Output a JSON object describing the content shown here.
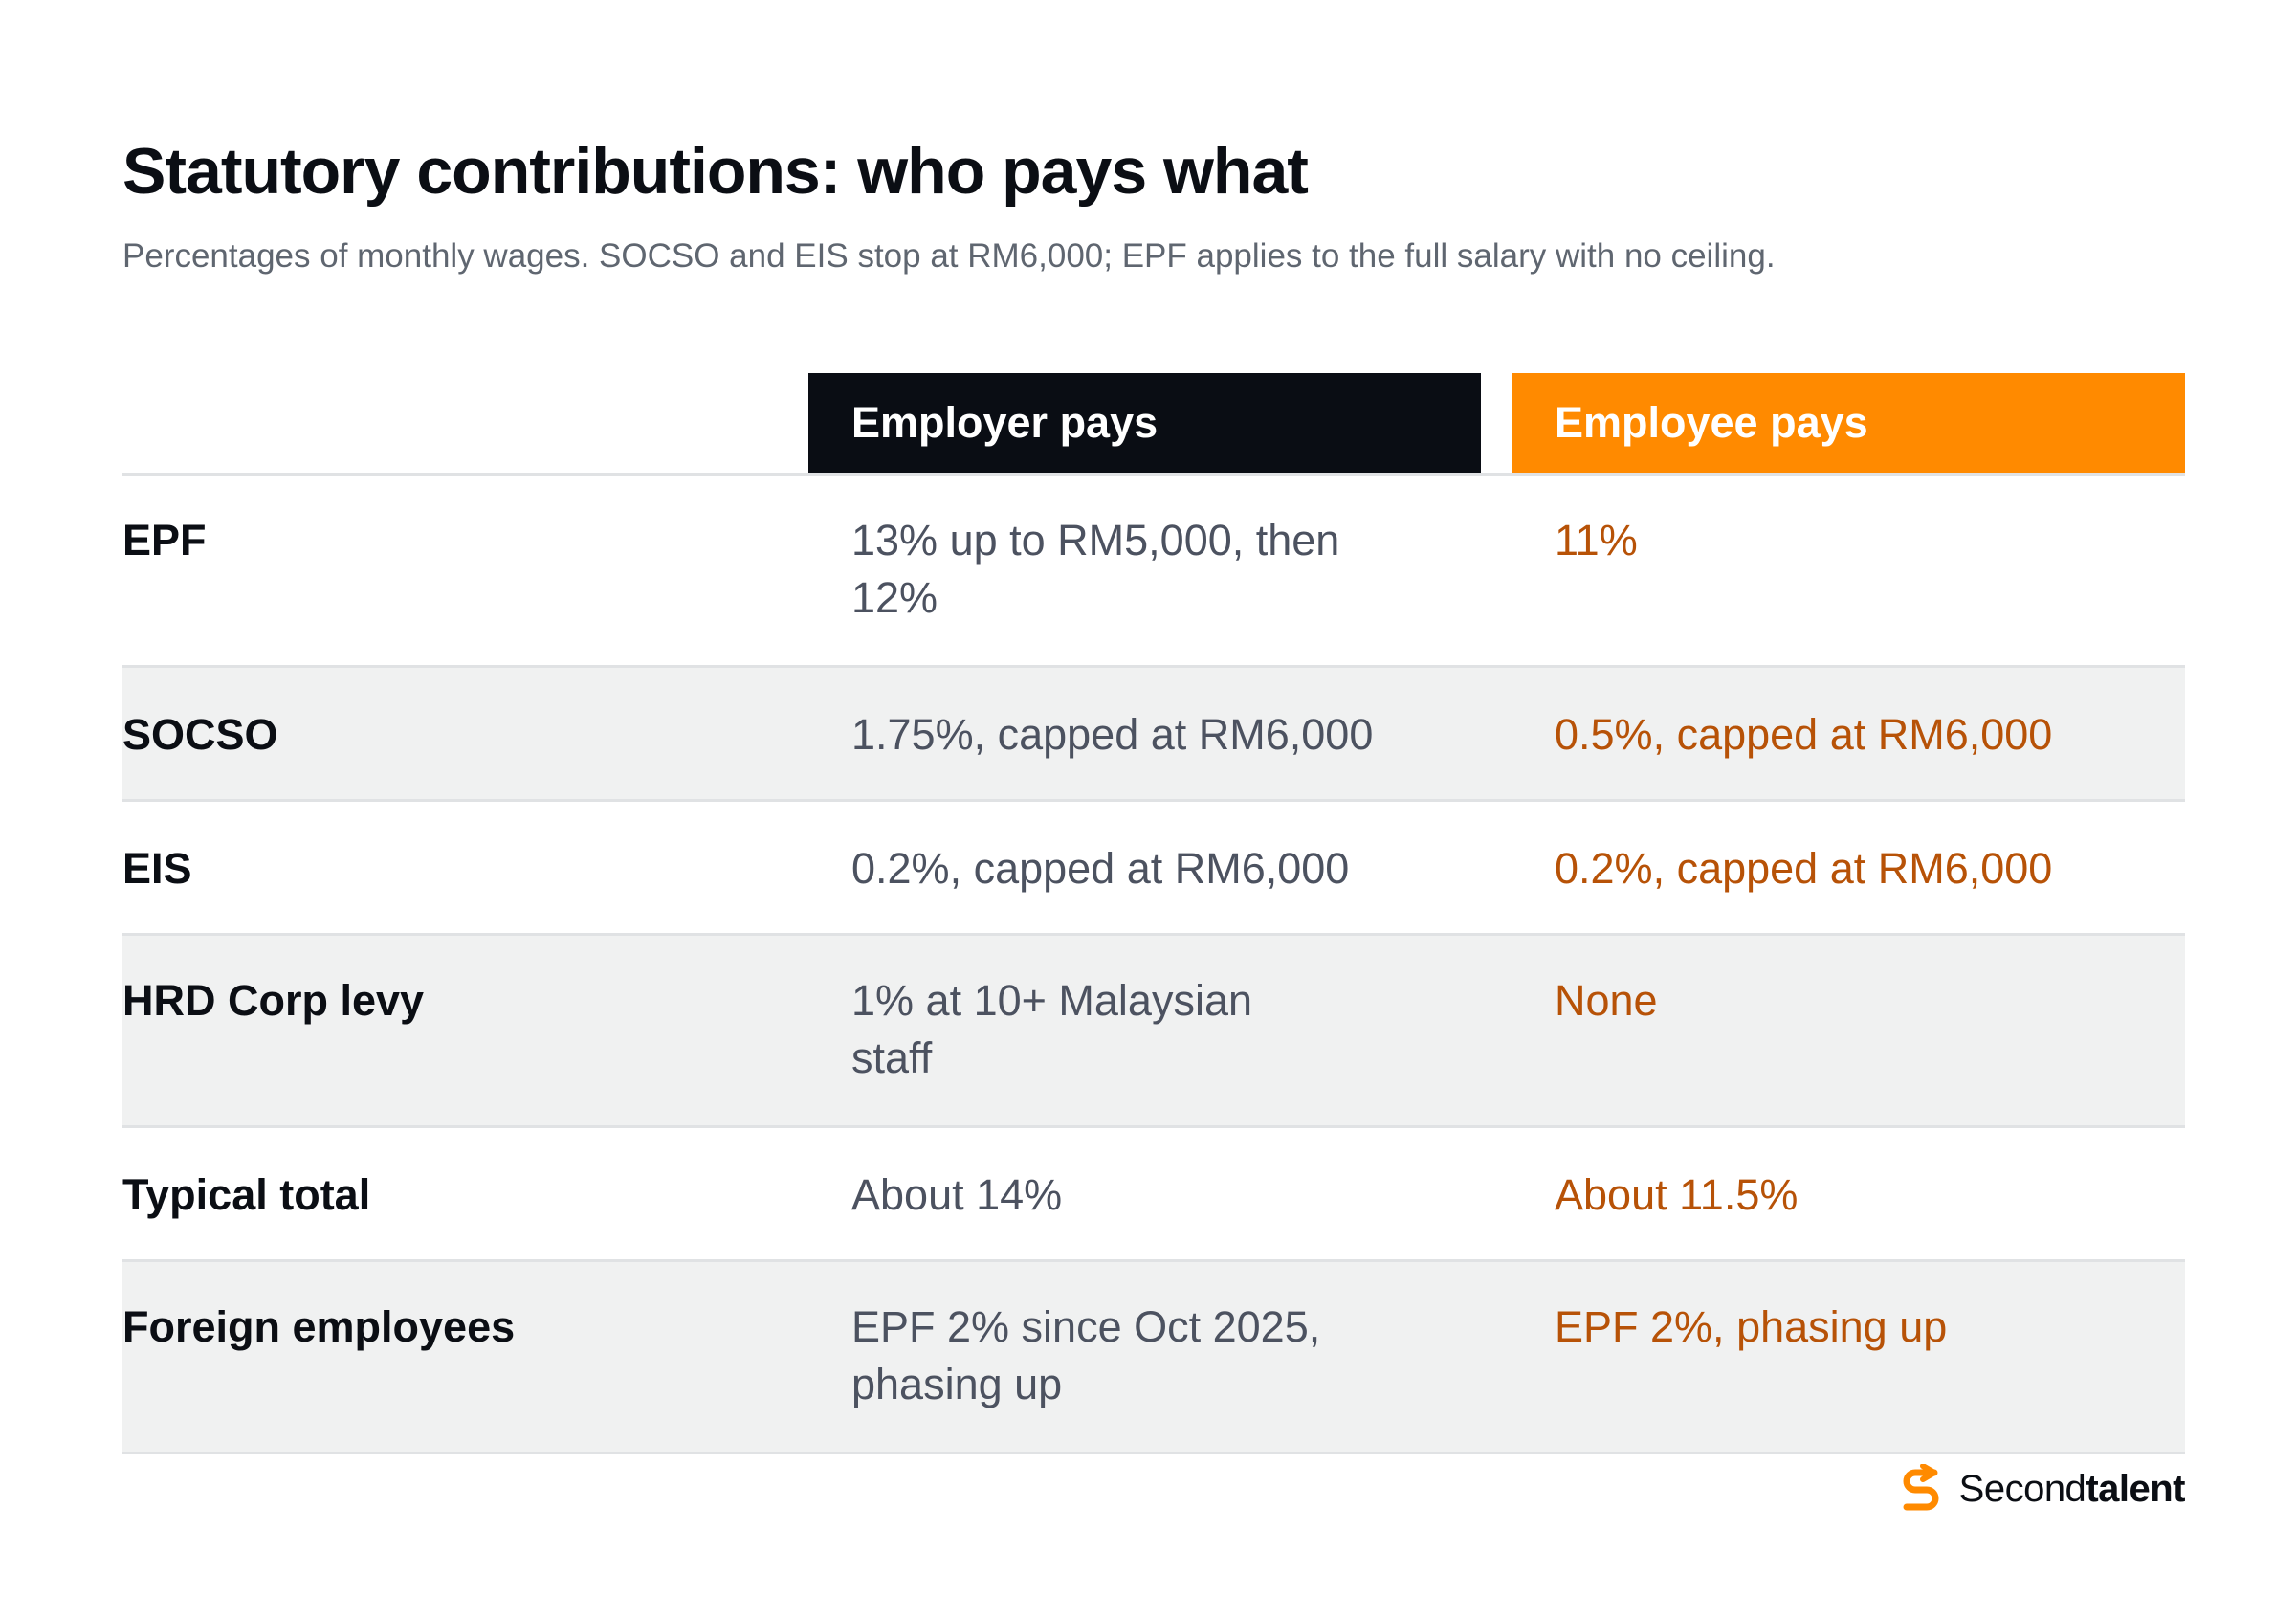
{
  "header": {
    "title": "Statutory contributions: who pays what",
    "subtitle": "Percentages of monthly wages. SOCSO and EIS stop at RM6,000; EPF applies to the full salary with no ceiling."
  },
  "table": {
    "columns": {
      "employer": "Employer pays",
      "employee": "Employee pays"
    },
    "rows": [
      {
        "label": "EPF",
        "employer": "13% up to RM5,000, then 12%",
        "employee": "11%"
      },
      {
        "label": "SOCSO",
        "employer": "1.75%, capped at RM6,000",
        "employee": "0.5%, capped at RM6,000"
      },
      {
        "label": "EIS",
        "employer": "0.2%, capped at RM6,000",
        "employee": "0.2%, capped at RM6,000"
      },
      {
        "label": "HRD Corp levy",
        "employer": "1% at 10+ Malaysian staff",
        "employee": "None"
      },
      {
        "label": "Typical total",
        "employer": "About 14%",
        "employee": "About 11.5%"
      },
      {
        "label": "Foreign employees",
        "employer": "EPF 2% since Oct 2025, phasing up",
        "employee": "EPF 2%, phasing up"
      }
    ]
  },
  "brand": {
    "name_regular": "Second",
    "name_bold": "talent",
    "icon": "secondtalent-logo-icon"
  },
  "colors": {
    "employer_header": "#0a0d14",
    "employee_header": "#ff8a00",
    "employee_text": "#b75207",
    "employer_text": "#4c5260",
    "shaded_row": "#f0f1f1"
  }
}
